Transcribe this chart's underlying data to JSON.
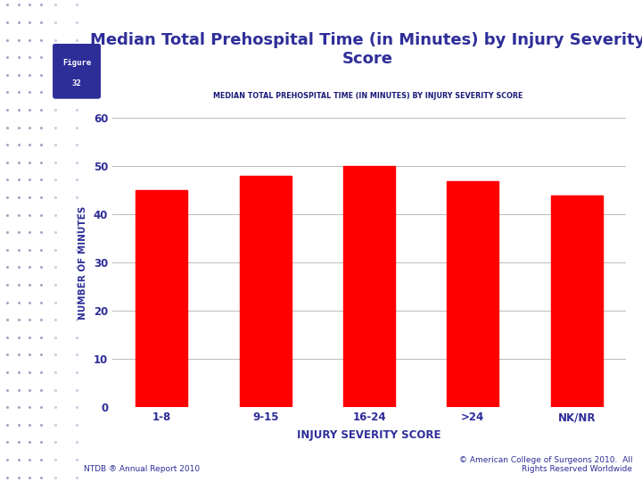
{
  "title": "Median Total Prehospital Time (in Minutes) by Injury Severity\nScore",
  "chart_title": "MEDIAN TOTAL PREHOSPITAL TIME (IN MINUTES) BY INJURY SEVERITY SCORE",
  "categories": [
    "1-8",
    "9-15",
    "16-24",
    ">24",
    "NK/NR"
  ],
  "values": [
    45,
    48,
    50,
    47,
    44
  ],
  "bar_color": "#FF0000",
  "xlabel": "INJURY SEVERITY SCORE",
  "ylabel": "NUMBER OF MINUTES",
  "ylim": [
    0,
    60
  ],
  "yticks": [
    0,
    10,
    20,
    30,
    40,
    50,
    60
  ],
  "figure_label_line1": "Figure",
  "figure_label_line2": "32",
  "figure_box_color": "#2E2E99",
  "figure_text_color": "#FFFFFF",
  "title_color": "#2E2E99",
  "axis_label_color": "#2E2E99",
  "tick_label_color": "#2E2E99",
  "chart_title_color": "#1A1A7A",
  "background_color": "#FFFFFF",
  "left_panel_color_dark": "#B0B8D8",
  "left_panel_color_light": "#D8DCF0",
  "dot_color": "#9098B8",
  "footer_left": "NTDB ® Annual Report 2010",
  "footer_right": "© American College of Surgeons 2010.  All\nRights Reserved Worldwide",
  "footer_color": "#2E2E99",
  "grid_color": "#BBBBBB",
  "bar_width": 0.5
}
